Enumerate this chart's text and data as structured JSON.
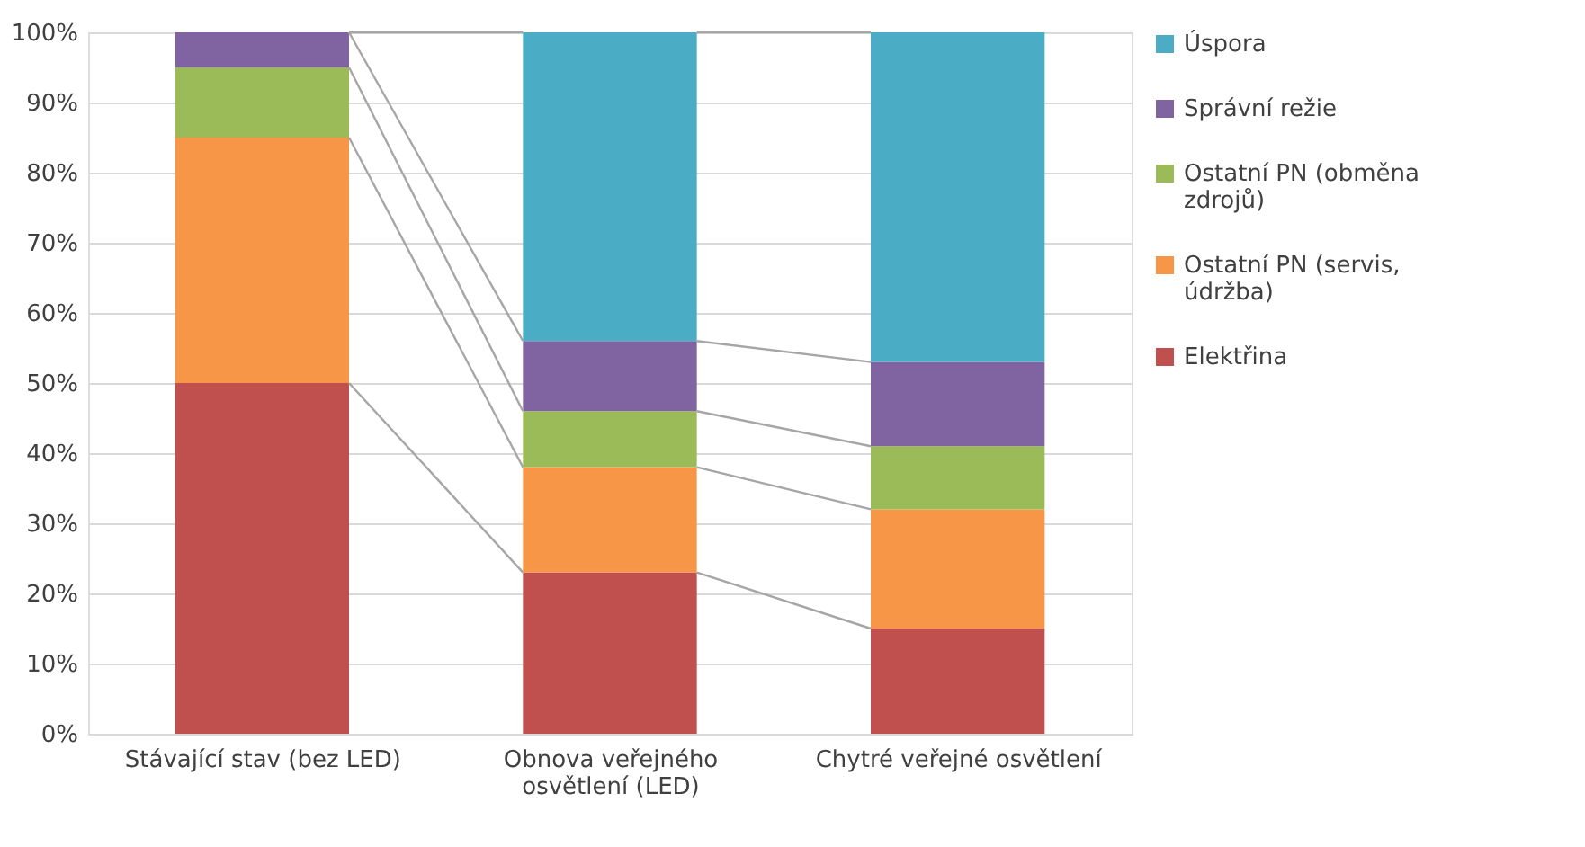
{
  "chart_data": {
    "type": "bar",
    "stacked": true,
    "categories": [
      "Stávající stav (bez LED)",
      "Obnova veřejného osvětlení (LED)",
      "Chytré veřejné osvětlení"
    ],
    "series": [
      {
        "name": "Elektřina",
        "color": "#c0504d",
        "values": [
          50,
          23,
          15
        ]
      },
      {
        "name": "Ostatní PN (servis, údržba)",
        "color": "#f79646",
        "values": [
          35,
          15,
          17
        ]
      },
      {
        "name": "Ostatní PN (obměna zdrojů)",
        "color": "#9bbb59",
        "values": [
          10,
          8,
          9
        ]
      },
      {
        "name": "Správní režie",
        "color": "#8064a2",
        "values": [
          5,
          10,
          12
        ]
      },
      {
        "name": "Úspora",
        "color": "#4bacc6",
        "values": [
          0,
          44,
          47
        ]
      }
    ],
    "ylim": [
      0,
      100
    ],
    "yticks": [
      {
        "value": 0,
        "label": "0%"
      },
      {
        "value": 10,
        "label": "10%"
      },
      {
        "value": 20,
        "label": "20%"
      },
      {
        "value": 30,
        "label": "30%"
      },
      {
        "value": 40,
        "label": "40%"
      },
      {
        "value": 50,
        "label": "50%"
      },
      {
        "value": 60,
        "label": "60%"
      },
      {
        "value": 70,
        "label": "70%"
      },
      {
        "value": 80,
        "label": "80%"
      },
      {
        "value": 90,
        "label": "90%"
      },
      {
        "value": 100,
        "label": "100%"
      }
    ],
    "grid": "y",
    "legend": "right"
  }
}
